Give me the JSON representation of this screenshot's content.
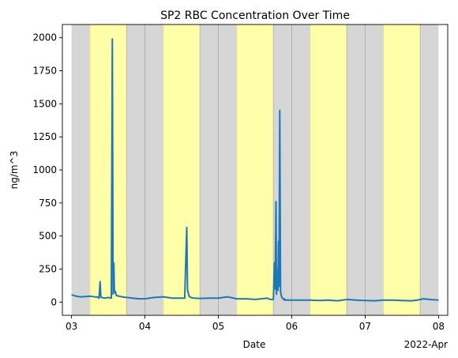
{
  "chart_data": {
    "type": "line",
    "title": "SP2 RBC Concentration Over Time",
    "xlabel": "Date",
    "ylabel": "ng/m^3",
    "x_offset_label": "2022-Apr",
    "x_ticks": [
      "03",
      "04",
      "05",
      "06",
      "07",
      "08"
    ],
    "x_tick_values": [
      "2022-04-03",
      "2022-04-04",
      "2022-04-05",
      "2022-04-06",
      "2022-04-07",
      "2022-04-08"
    ],
    "xlim": [
      "2022-04-02 21:00",
      "2022-04-08 03:00"
    ],
    "ylim": [
      -100,
      2100
    ],
    "y_ticks": [
      0,
      250,
      500,
      750,
      1000,
      1250,
      1500,
      1750,
      2000
    ],
    "grid": false,
    "legend": "none",
    "background_bands": [
      {
        "kind": "night",
        "color": "#d6d6d6",
        "start": "2022-04-03 00:00",
        "end": "2022-04-03 06:00"
      },
      {
        "kind": "day",
        "color": "#ffffaa",
        "start": "2022-04-03 06:00",
        "end": "2022-04-03 18:00"
      },
      {
        "kind": "night",
        "color": "#d6d6d6",
        "start": "2022-04-03 18:00",
        "end": "2022-04-04 06:00"
      },
      {
        "kind": "day",
        "color": "#ffffaa",
        "start": "2022-04-04 06:00",
        "end": "2022-04-04 18:00"
      },
      {
        "kind": "night",
        "color": "#d6d6d6",
        "start": "2022-04-04 18:00",
        "end": "2022-04-05 06:00"
      },
      {
        "kind": "day",
        "color": "#ffffaa",
        "start": "2022-04-05 06:00",
        "end": "2022-04-05 18:00"
      },
      {
        "kind": "night",
        "color": "#d6d6d6",
        "start": "2022-04-05 18:00",
        "end": "2022-04-06 06:00"
      },
      {
        "kind": "day",
        "color": "#ffffaa",
        "start": "2022-04-06 06:00",
        "end": "2022-04-06 18:00"
      },
      {
        "kind": "night",
        "color": "#d6d6d6",
        "start": "2022-04-06 18:00",
        "end": "2022-04-07 06:00"
      },
      {
        "kind": "day",
        "color": "#ffffaa",
        "start": "2022-04-07 06:00",
        "end": "2022-04-07 18:00"
      },
      {
        "kind": "night",
        "color": "#d6d6d6",
        "start": "2022-04-07 18:00",
        "end": "2022-04-08 00:00"
      }
    ],
    "series": [
      {
        "color": "#1f77b4",
        "x": [
          "2022-04-03 00:00",
          "2022-04-03 01:30",
          "2022-04-03 03:00",
          "2022-04-03 04:30",
          "2022-04-03 06:00",
          "2022-04-03 07:30",
          "2022-04-03 08:30",
          "2022-04-03 09:00",
          "2022-04-03 09:20",
          "2022-04-03 09:35",
          "2022-04-03 09:50",
          "2022-04-03 10:20",
          "2022-04-03 11:00",
          "2022-04-03 12:00",
          "2022-04-03 13:00",
          "2022-04-03 13:20",
          "2022-04-03 13:35",
          "2022-04-03 13:50",
          "2022-04-03 14:00",
          "2022-04-03 14:10",
          "2022-04-03 14:20",
          "2022-04-03 14:40",
          "2022-04-03 15:30",
          "2022-04-03 16:30",
          "2022-04-03 18:00",
          "2022-04-03 20:00",
          "2022-04-03 22:00",
          "2022-04-04 00:00",
          "2022-04-04 03:00",
          "2022-04-04 06:00",
          "2022-04-04 09:00",
          "2022-04-04 12:00",
          "2022-04-04 13:00",
          "2022-04-04 13:40",
          "2022-04-04 13:55",
          "2022-04-04 14:10",
          "2022-04-04 14:25",
          "2022-04-04 15:00",
          "2022-04-04 16:00",
          "2022-04-04 18:00",
          "2022-04-04 21:00",
          "2022-04-05 00:00",
          "2022-04-05 03:00",
          "2022-04-05 06:00",
          "2022-04-05 09:00",
          "2022-04-05 12:00",
          "2022-04-05 14:00",
          "2022-04-05 16:00",
          "2022-04-05 17:00",
          "2022-04-05 18:00",
          "2022-04-05 18:20",
          "2022-04-05 18:35",
          "2022-04-05 18:50",
          "2022-04-05 19:00",
          "2022-04-05 19:15",
          "2022-04-05 19:30",
          "2022-04-05 19:40",
          "2022-04-05 19:50",
          "2022-04-05 20:05",
          "2022-04-05 20:20",
          "2022-04-05 20:40",
          "2022-04-05 21:00",
          "2022-04-05 21:10",
          "2022-04-05 21:20",
          "2022-04-05 21:30",
          "2022-04-05 21:40",
          "2022-04-05 21:50",
          "2022-04-05 22:10",
          "2022-04-06 00:00",
          "2022-04-06 03:00",
          "2022-04-06 06:00",
          "2022-04-06 09:00",
          "2022-04-06 12:00",
          "2022-04-06 15:00",
          "2022-04-06 18:00",
          "2022-04-06 21:00",
          "2022-04-07 00:00",
          "2022-04-07 03:00",
          "2022-04-07 06:00",
          "2022-04-07 09:00",
          "2022-04-07 12:00",
          "2022-04-07 15:00",
          "2022-04-07 17:00",
          "2022-04-07 19:00",
          "2022-04-07 21:00",
          "2022-04-08 00:00"
        ],
        "y": [
          55,
          45,
          40,
          42,
          45,
          40,
          38,
          30,
          155,
          40,
          35,
          32,
          30,
          35,
          30,
          1990,
          60,
          295,
          90,
          70,
          80,
          50,
          45,
          40,
          35,
          30,
          25,
          25,
          35,
          40,
          30,
          30,
          30,
          565,
          90,
          70,
          45,
          35,
          30,
          28,
          30,
          30,
          40,
          25,
          25,
          20,
          25,
          30,
          20,
          20,
          300,
          100,
          760,
          60,
          250,
          90,
          460,
          120,
          1450,
          80,
          40,
          30,
          25,
          20,
          25,
          15,
          20,
          15,
          15,
          15,
          15,
          12,
          15,
          10,
          20,
          15,
          12,
          10,
          15,
          15,
          12,
          10,
          15,
          25,
          20,
          15
        ]
      }
    ]
  }
}
